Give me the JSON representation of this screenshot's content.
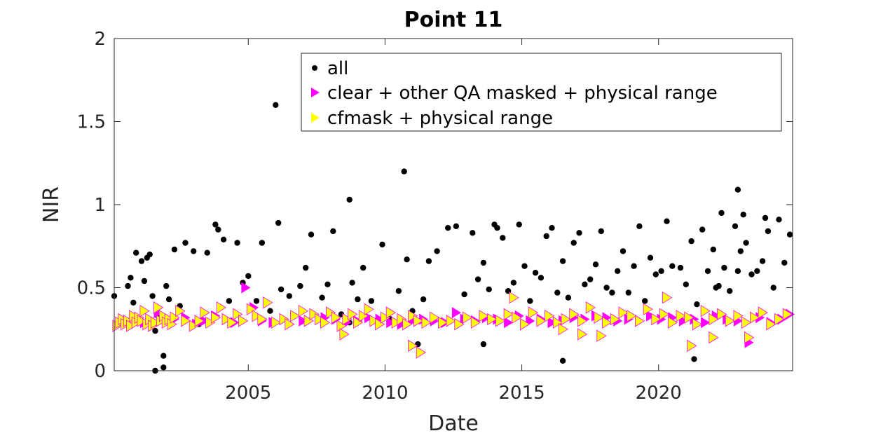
{
  "chart_data": {
    "type": "scatter",
    "title": "Point 11",
    "xlabel": "Date",
    "ylabel": "NIR",
    "xlim": [
      2000.1,
      2024.9
    ],
    "ylim": [
      0,
      2
    ],
    "xticks": [
      2005,
      2010,
      2015,
      2020
    ],
    "xtick_labels": [
      "2005",
      "2010",
      "2015",
      "2020"
    ],
    "yticks": [
      0,
      0.5,
      1,
      1.5,
      2
    ],
    "ytick_labels": [
      "0",
      "0.5",
      "1",
      "1.5",
      "2"
    ],
    "grid": false,
    "legend_position": "top-right",
    "series": [
      {
        "name": "all",
        "marker": "dot",
        "color": "#000000",
        "x": [
          2000.1,
          2000.6,
          2000.7,
          2000.8,
          2000.9,
          2001.0,
          2001.1,
          2001.2,
          2001.3,
          2001.4,
          2001.5,
          2001.6,
          2001.7,
          2001.8,
          2001.9,
          2002.0,
          2002.1,
          2002.3,
          2002.5,
          2002.7,
          2003.0,
          2003.2,
          2003.5,
          2003.8,
          2003.9,
          2004.1,
          2004.3,
          2004.6,
          2004.8,
          2005.0,
          2005.3,
          2005.5,
          2005.8,
          2006.1,
          2006.2,
          2006.5,
          2006.9,
          2007.1,
          2007.3,
          2007.7,
          2007.9,
          2008.1,
          2008.4,
          2008.7,
          2008.8,
          2009.0,
          2009.2,
          2009.5,
          2009.9,
          2010.2,
          2010.5,
          2010.8,
          2011.0,
          2011.2,
          2011.4,
          2011.6,
          2011.9,
          2012.3,
          2012.6,
          2012.9,
          2013.2,
          2013.4,
          2013.6,
          2013.8,
          2014.0,
          2014.1,
          2014.3,
          2014.5,
          2014.7,
          2014.9,
          2015.1,
          2015.3,
          2015.5,
          2015.7,
          2015.9,
          2016.1,
          2016.3,
          2016.5,
          2016.7,
          2016.9,
          2017.1,
          2017.3,
          2017.5,
          2017.7,
          2017.9,
          2018.1,
          2018.3,
          2018.5,
          2018.7,
          2018.9,
          2019.1,
          2019.3,
          2019.5,
          2019.7,
          2019.9,
          2020.1,
          2020.3,
          2020.5,
          2020.8,
          2021.0,
          2021.2,
          2021.4,
          2021.6,
          2021.8,
          2022.0,
          2022.1,
          2022.2,
          2022.3,
          2022.4,
          2022.6,
          2022.8,
          2022.9,
          2023.0,
          2023.1,
          2023.2,
          2023.4,
          2023.6,
          2023.8,
          2023.9,
          2024.0,
          2024.2,
          2024.4,
          2024.6,
          2024.8,
          2001.6,
          2001.9,
          2006.0,
          2010.7,
          2013.6,
          2016.5,
          2021.3,
          2022.9,
          2008.7
        ],
        "y": [
          0.45,
          0.51,
          0.56,
          0.41,
          0.71,
          0.29,
          0.66,
          0.54,
          0.68,
          0.7,
          0.45,
          0.24,
          0.33,
          0.31,
          0.09,
          0.51,
          0.43,
          0.73,
          0.39,
          0.77,
          0.72,
          0.28,
          0.71,
          0.88,
          0.85,
          0.79,
          0.42,
          0.77,
          0.53,
          0.57,
          0.42,
          0.77,
          0.36,
          0.89,
          0.49,
          0.45,
          0.51,
          0.62,
          0.82,
          0.44,
          0.52,
          0.84,
          0.34,
          0.29,
          0.53,
          0.43,
          0.62,
          0.42,
          0.76,
          0.31,
          0.48,
          0.67,
          0.36,
          0.16,
          0.43,
          0.66,
          0.72,
          0.86,
          0.87,
          0.46,
          0.83,
          0.55,
          0.65,
          0.49,
          0.88,
          0.86,
          0.8,
          0.48,
          0.53,
          0.88,
          0.63,
          0.42,
          0.59,
          0.56,
          0.81,
          0.86,
          0.47,
          0.66,
          0.44,
          0.77,
          0.83,
          0.52,
          0.55,
          0.64,
          0.84,
          0.5,
          0.47,
          0.6,
          0.72,
          0.47,
          0.63,
          0.87,
          0.42,
          0.68,
          0.58,
          0.6,
          0.9,
          0.63,
          0.62,
          0.52,
          0.78,
          0.4,
          0.85,
          0.6,
          0.73,
          0.5,
          0.51,
          0.95,
          0.62,
          0.48,
          0.87,
          0.6,
          0.72,
          0.94,
          0.77,
          0.58,
          0.6,
          0.66,
          0.92,
          0.84,
          0.5,
          0.91,
          0.65,
          0.82,
          0.0,
          0.02,
          1.6,
          1.2,
          0.16,
          0.06,
          0.07,
          1.09,
          1.03
        ]
      },
      {
        "name": "clear + other QA masked + physical range",
        "marker": "triangle-right",
        "color": "#ff00ff",
        "x": [
          2000.3,
          2000.5,
          2000.8,
          2001.2,
          2001.4,
          2001.7,
          2002.0,
          2002.3,
          2002.7,
          2003.1,
          2003.4,
          2003.8,
          2004.2,
          2004.5,
          2004.9,
          2005.2,
          2005.5,
          2005.9,
          2006.3,
          2006.7,
          2007.0,
          2007.4,
          2007.8,
          2008.2,
          2008.6,
          2009.0,
          2009.4,
          2009.8,
          2010.2,
          2010.6,
          2011.0,
          2011.4,
          2011.8,
          2012.2,
          2012.6,
          2012.9,
          2013.3,
          2013.7,
          2014.1,
          2014.5,
          2014.9,
          2015.3,
          2015.7,
          2016.1,
          2016.5,
          2016.9,
          2017.3,
          2017.7,
          2018.1,
          2018.5,
          2018.9,
          2019.3,
          2019.7,
          2020.1,
          2020.5,
          2020.9,
          2021.3,
          2021.7,
          2022.1,
          2022.5,
          2022.9,
          2023.3,
          2023.7,
          2024.1,
          2024.5,
          2024.8
        ],
        "y": [
          0.28,
          0.3,
          0.32,
          0.29,
          0.3,
          0.35,
          0.29,
          0.31,
          0.32,
          0.28,
          0.3,
          0.33,
          0.31,
          0.29,
          0.5,
          0.38,
          0.3,
          0.29,
          0.31,
          0.33,
          0.3,
          0.34,
          0.32,
          0.31,
          0.29,
          0.3,
          0.32,
          0.31,
          0.29,
          0.28,
          0.3,
          0.31,
          0.3,
          0.29,
          0.35,
          0.31,
          0.3,
          0.32,
          0.31,
          0.29,
          0.33,
          0.3,
          0.31,
          0.29,
          0.3,
          0.32,
          0.31,
          0.33,
          0.32,
          0.3,
          0.31,
          0.3,
          0.33,
          0.31,
          0.32,
          0.3,
          0.31,
          0.29,
          0.33,
          0.31,
          0.3,
          0.17,
          0.32,
          0.29,
          0.31,
          0.34
        ]
      },
      {
        "name": "cfmask + physical range",
        "marker": "triangle-right",
        "color": "#ffff00",
        "x": [
          2000.2,
          2000.3,
          2000.4,
          2000.5,
          2000.6,
          2000.7,
          2000.8,
          2000.9,
          2001.0,
          2001.1,
          2001.2,
          2001.3,
          2001.4,
          2001.5,
          2001.6,
          2001.7,
          2001.8,
          2001.9,
          2002.0,
          2002.1,
          2002.2,
          2002.3,
          2002.5,
          2002.7,
          2003.0,
          2003.2,
          2003.4,
          2003.6,
          2003.8,
          2004.0,
          2004.2,
          2004.4,
          2004.6,
          2004.8,
          2005.1,
          2005.3,
          2005.5,
          2005.7,
          2006.0,
          2006.3,
          2006.5,
          2006.7,
          2007.0,
          2007.2,
          2007.4,
          2007.6,
          2007.8,
          2008.0,
          2008.2,
          2008.4,
          2008.6,
          2008.8,
          2009.0,
          2009.2,
          2009.4,
          2009.6,
          2009.8,
          2010.0,
          2010.2,
          2010.4,
          2010.6,
          2010.8,
          2011.0,
          2011.2,
          2011.5,
          2011.8,
          2012.1,
          2012.4,
          2012.7,
          2013.0,
          2013.3,
          2013.6,
          2013.9,
          2014.2,
          2014.5,
          2014.8,
          2015.1,
          2015.4,
          2015.7,
          2016.0,
          2016.3,
          2016.6,
          2016.9,
          2017.2,
          2017.5,
          2017.8,
          2018.1,
          2018.4,
          2018.7,
          2019.0,
          2019.3,
          2019.6,
          2019.9,
          2020.2,
          2020.5,
          2020.8,
          2021.1,
          2021.4,
          2021.7,
          2022.0,
          2022.3,
          2022.6,
          2022.9,
          2023.2,
          2023.5,
          2023.8,
          2024.1,
          2024.4,
          2024.7,
          2011.0,
          2011.3,
          2008.5,
          2016.5,
          2017.2,
          2017.9,
          2021.2,
          2022.0,
          2023.3,
          2014.7,
          2020.3
        ],
        "y": [
          0.27,
          0.29,
          0.31,
          0.28,
          0.3,
          0.27,
          0.33,
          0.29,
          0.32,
          0.3,
          0.36,
          0.28,
          0.31,
          0.27,
          0.29,
          0.38,
          0.3,
          0.33,
          0.29,
          0.31,
          0.28,
          0.32,
          0.36,
          0.3,
          0.27,
          0.3,
          0.35,
          0.29,
          0.32,
          0.38,
          0.31,
          0.29,
          0.34,
          0.3,
          0.37,
          0.33,
          0.31,
          0.41,
          0.29,
          0.31,
          0.28,
          0.33,
          0.36,
          0.3,
          0.34,
          0.31,
          0.29,
          0.35,
          0.32,
          0.27,
          0.31,
          0.34,
          0.29,
          0.33,
          0.37,
          0.3,
          0.28,
          0.32,
          0.35,
          0.29,
          0.31,
          0.28,
          0.33,
          0.3,
          0.29,
          0.32,
          0.29,
          0.3,
          0.28,
          0.32,
          0.29,
          0.33,
          0.31,
          0.3,
          0.34,
          0.32,
          0.28,
          0.35,
          0.3,
          0.33,
          0.29,
          0.31,
          0.34,
          0.3,
          0.38,
          0.32,
          0.29,
          0.31,
          0.35,
          0.33,
          0.3,
          0.37,
          0.31,
          0.34,
          0.29,
          0.33,
          0.32,
          0.28,
          0.36,
          0.31,
          0.34,
          0.3,
          0.33,
          0.29,
          0.32,
          0.35,
          0.28,
          0.31,
          0.34,
          0.15,
          0.11,
          0.22,
          0.25,
          0.22,
          0.21,
          0.15,
          0.2,
          0.2,
          0.44,
          0.44
        ]
      }
    ]
  }
}
